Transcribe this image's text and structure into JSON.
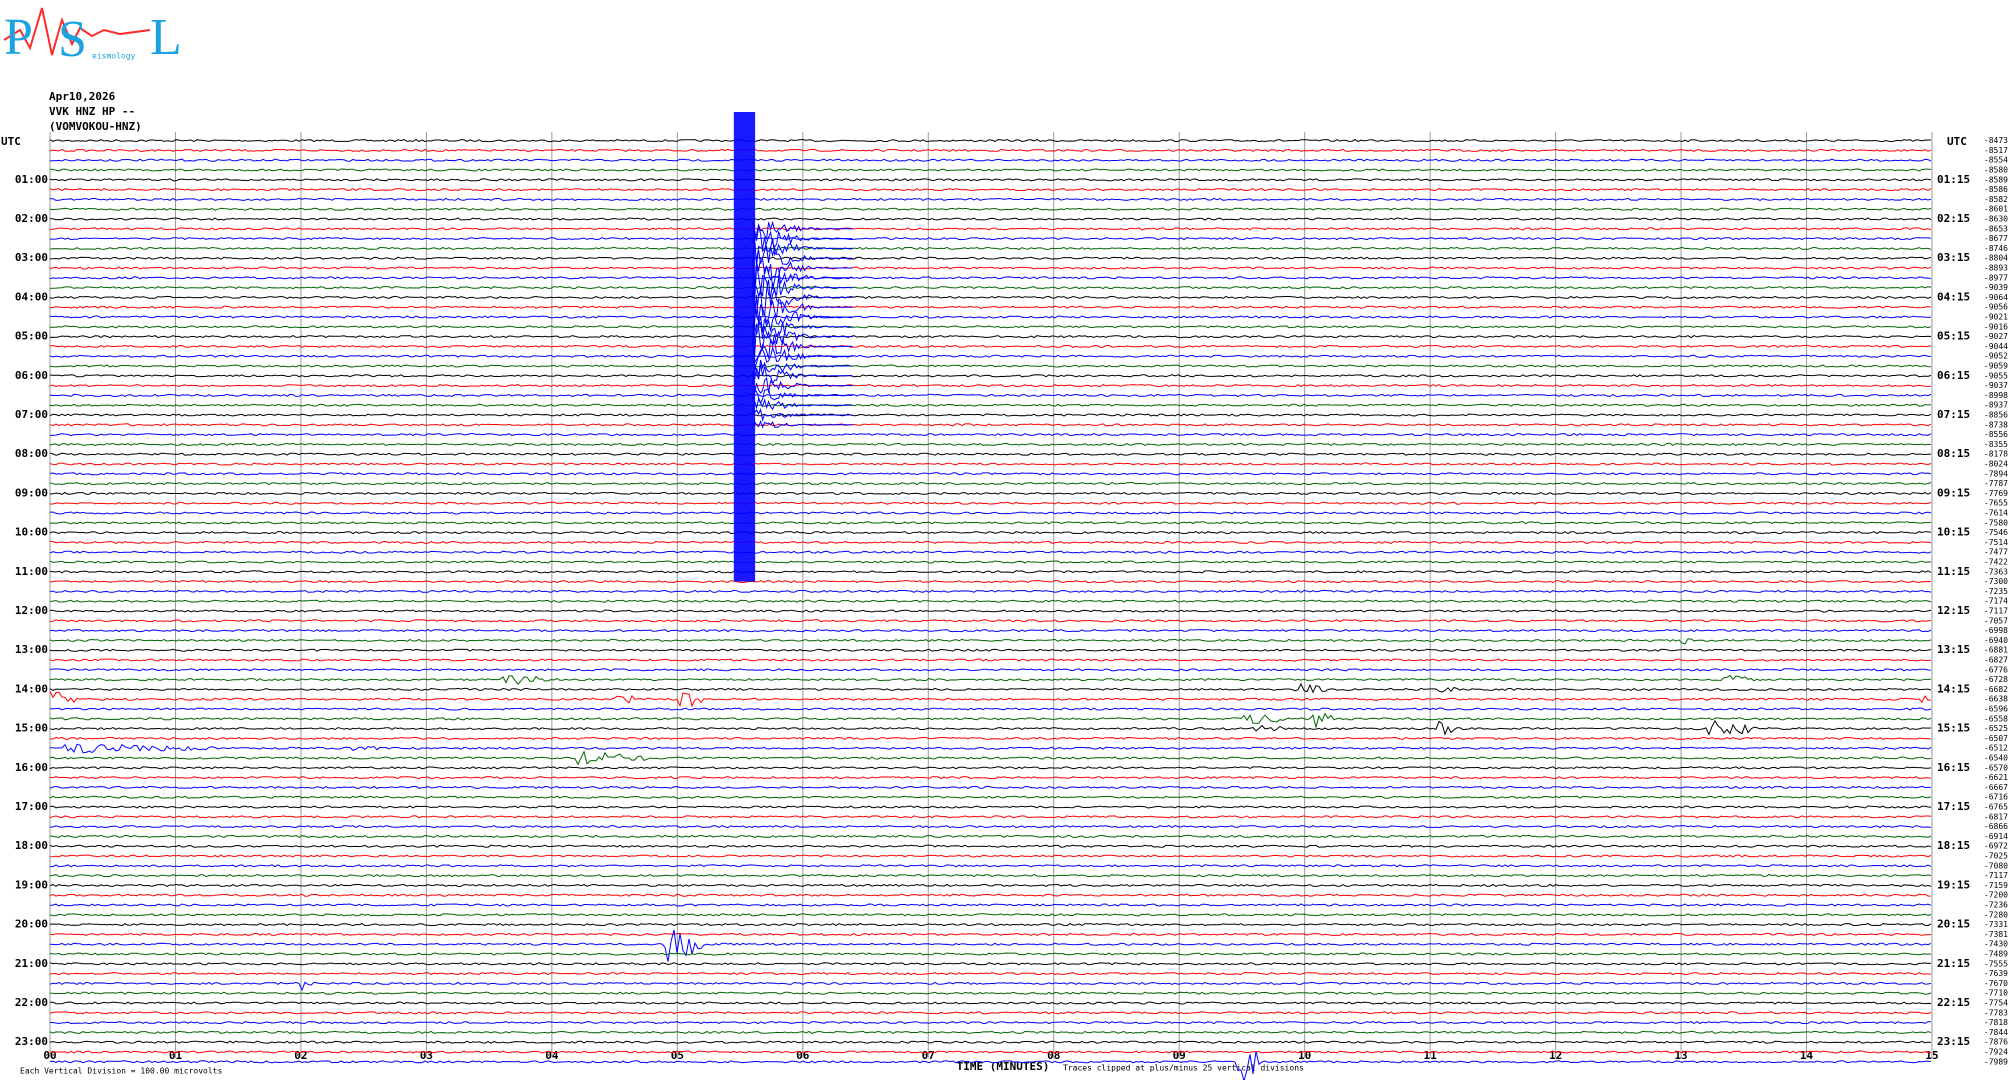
{
  "chart_data": {
    "type": "helicorder",
    "logo": [
      "P",
      "S",
      "L"
    ],
    "logo_text": "eismology",
    "header": [
      "Apr10,2026",
      "VVK HNZ HP --",
      "(VOMVOKOU-HNZ)"
    ],
    "left_axis_title": "UTC",
    "right_axis_title": "UTC",
    "left_labels": [
      "01:00",
      "02:00",
      "03:00",
      "04:00",
      "05:00",
      "06:00",
      "07:00",
      "08:00",
      "09:00",
      "10:00",
      "11:00",
      "12:00",
      "13:00",
      "14:00",
      "15:00",
      "16:00",
      "17:00",
      "18:00",
      "19:00",
      "20:00",
      "21:00",
      "22:00",
      "23:00"
    ],
    "right_labels": [
      "01:15",
      "02:15",
      "03:15",
      "04:15",
      "05:15",
      "06:15",
      "07:15",
      "08:15",
      "09:15",
      "10:15",
      "11:15",
      "12:15",
      "13:15",
      "14:15",
      "15:15",
      "16:15",
      "17:15",
      "18:15",
      "19:15",
      "20:15",
      "21:15",
      "22:15",
      "23:15"
    ],
    "trace_offsets": [
      -8473,
      -8517,
      -8554,
      -8580,
      -8589,
      -8586,
      -8582,
      -8601,
      -8630,
      -8653,
      -8677,
      -8746,
      -8804,
      -8893,
      -8977,
      -9039,
      -9064,
      -9056,
      -9021,
      -9016,
      -9027,
      -9044,
      -9052,
      -9059,
      -9055,
      -9037,
      -8998,
      -8937,
      -8856,
      -8738,
      -8556,
      -8355,
      -8178,
      -8024,
      -7894,
      -7787,
      -7769,
      -7655,
      -7614,
      -7580,
      -7546,
      -7514,
      -7477,
      -7422,
      -7363,
      -7300,
      -7235,
      -7174,
      -7117,
      -7057,
      -6998,
      -6940,
      -6881,
      -6827,
      -6776,
      -6728,
      -6682,
      -6638,
      -6596,
      -6558,
      -6525,
      -6507,
      -6512,
      -6540,
      -6570,
      -6621,
      -6667,
      -6716,
      -6765,
      -6817,
      -6866,
      -6914,
      -6972,
      -7025,
      -7080,
      -7117,
      -7159,
      -7200,
      -7236,
      -7280,
      -7331,
      -7381,
      -7430,
      -7489,
      -7555,
      -7639,
      -7670,
      -7710,
      -7754,
      -7783,
      -7818,
      -7844,
      -7876,
      -7924,
      -7989
    ],
    "colors": [
      "#000000",
      "#ff0000",
      "#0000ff",
      "#006400"
    ],
    "xlim": [
      0,
      15
    ],
    "xticks": [
      {
        "value": 0,
        "label": "00"
      },
      {
        "value": 1,
        "label": "01"
      },
      {
        "value": 2,
        "label": "02"
      },
      {
        "value": 3,
        "label": "03"
      },
      {
        "value": 4,
        "label": "04"
      },
      {
        "value": 5,
        "label": "05"
      },
      {
        "value": 6,
        "label": "06"
      },
      {
        "value": 7,
        "label": "07"
      },
      {
        "value": 8,
        "label": "08"
      },
      {
        "value": 9,
        "label": "09"
      },
      {
        "value": 10,
        "label": "10"
      },
      {
        "value": 11,
        "label": "11"
      },
      {
        "value": 12,
        "label": "12"
      },
      {
        "value": 13,
        "label": "13"
      },
      {
        "value": 14,
        "label": "14"
      },
      {
        "value": 15,
        "label": "15"
      }
    ],
    "xlabel": "TIME (MINUTES)",
    "scale_note": "Each Vertical Division =  100.00 microvolts",
    "clip_note": "Traces clipped at plus/minus 25 vertical divisions",
    "grid": true
  }
}
